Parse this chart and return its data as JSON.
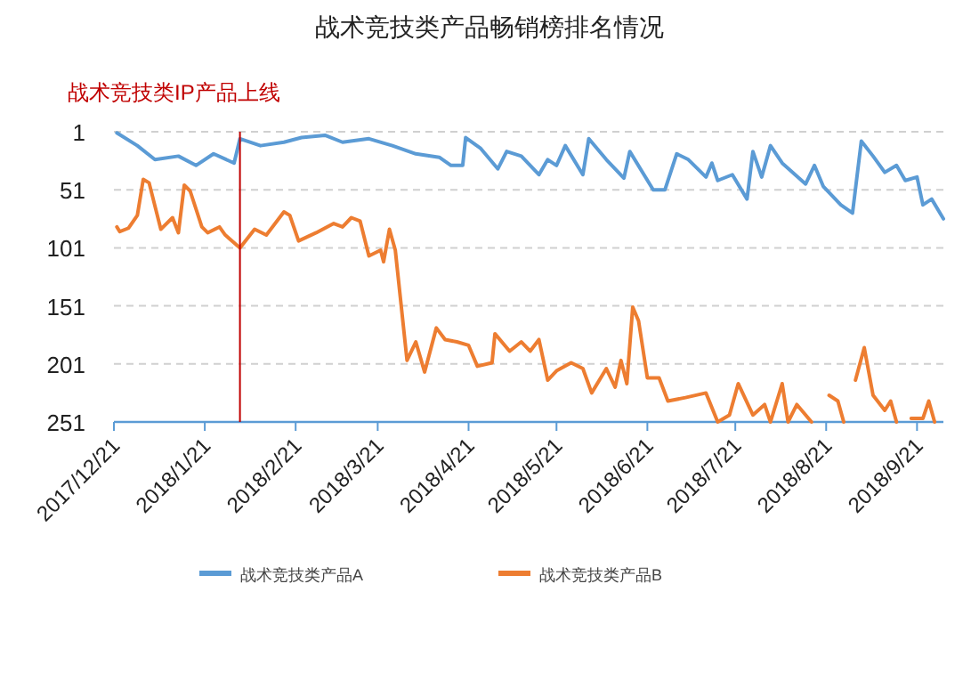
{
  "chart_data": {
    "type": "line",
    "title": "战术竞技类产品畅销榜排名情况",
    "xlim": [
      "2017-12-21",
      "2018-09-30"
    ],
    "xticks": [
      {
        "value": "2017-12-21",
        "label": "2017/12/21"
      },
      {
        "value": "2018-01-21",
        "label": "2018/1/21"
      },
      {
        "value": "2018-02-21",
        "label": "2018/2/21"
      },
      {
        "value": "2018-03-21",
        "label": "2018/3/21"
      },
      {
        "value": "2018-04-21",
        "label": "2018/4/21"
      },
      {
        "value": "2018-05-21",
        "label": "2018/5/21"
      },
      {
        "value": "2018-06-21",
        "label": "2018/6/21"
      },
      {
        "value": "2018-07-21",
        "label": "2018/7/21"
      },
      {
        "value": "2018-08-21",
        "label": "2018/8/21"
      },
      {
        "value": "2018-09-21",
        "label": "2018/9/21"
      }
    ],
    "ylim": [
      251,
      1
    ],
    "yticks": [
      1,
      51,
      101,
      151,
      201,
      251
    ],
    "grid": "y",
    "legend": "bottom",
    "ref_lines": [
      {
        "axis": "x",
        "value": "2018-02-02",
        "label": "战术竞技类IP产品上线",
        "color": "#c00000"
      }
    ],
    "series": [
      {
        "name": "战术竞技类产品A",
        "color": "#5b9bd5",
        "x": [
          "2017-12-22",
          "2017-12-29",
          "2018-01-04",
          "2018-01-12",
          "2018-01-18",
          "2018-01-24",
          "2018-01-31",
          "2018-02-02",
          "2018-02-09",
          "2018-02-17",
          "2018-02-23",
          "2018-03-03",
          "2018-03-09",
          "2018-03-18",
          "2018-03-26",
          "2018-04-03",
          "2018-04-11",
          "2018-04-15",
          "2018-04-19",
          "2018-04-20",
          "2018-04-25",
          "2018-05-01",
          "2018-05-04",
          "2018-05-09",
          "2018-05-15",
          "2018-05-18",
          "2018-05-21",
          "2018-05-24",
          "2018-05-30",
          "2018-06-01",
          "2018-06-07",
          "2018-06-13",
          "2018-06-15",
          "2018-06-23",
          "2018-06-27",
          "2018-07-01",
          "2018-07-05",
          "2018-07-11",
          "2018-07-13",
          "2018-07-15",
          "2018-07-20",
          "2018-07-25",
          "2018-07-27",
          "2018-07-30",
          "2018-08-02",
          "2018-08-06",
          "2018-08-14",
          "2018-08-17",
          "2018-08-20",
          "2018-08-26",
          "2018-08-30",
          "2018-09-02",
          "2018-09-06",
          "2018-09-10",
          "2018-09-14",
          "2018-09-17",
          "2018-09-21",
          "2018-09-23",
          "2018-09-26",
          "2018-09-30"
        ],
        "values": [
          2,
          13,
          25,
          22,
          30,
          20,
          28,
          7,
          13,
          10,
          6,
          4,
          10,
          7,
          13,
          20,
          23,
          30,
          30,
          6,
          15,
          33,
          18,
          22,
          38,
          25,
          30,
          13,
          38,
          7,
          25,
          41,
          18,
          51,
          51,
          20,
          25,
          40,
          28,
          43,
          38,
          59,
          18,
          40,
          13,
          28,
          46,
          30,
          48,
          64,
          71,
          9,
          22,
          36,
          30,
          43,
          40,
          64,
          59,
          76
        ]
      },
      {
        "name": "战术竞技类产品B",
        "color": "#ed7d31",
        "x": [
          "2017-12-22",
          "2017-12-23",
          "2017-12-26",
          "2017-12-29",
          "2017-12-31",
          "2018-01-02",
          "2018-01-06",
          "2018-01-10",
          "2018-01-12",
          "2018-01-14",
          "2018-01-16",
          "2018-01-20",
          "2018-01-22",
          "2018-01-26",
          "2018-01-28",
          "2018-02-02",
          "2018-02-07",
          "2018-02-11",
          "2018-02-17",
          "2018-02-19",
          "2018-02-22",
          "2018-02-28",
          "2018-03-06",
          "2018-03-09",
          "2018-03-12",
          "2018-03-15",
          "2018-03-18",
          "2018-03-22",
          "2018-03-23",
          "2018-03-25",
          "2018-03-27",
          "2018-03-31",
          "2018-04-03",
          "2018-04-06",
          "2018-04-10",
          "2018-04-13",
          "2018-04-17",
          "2018-04-21",
          "2018-04-24",
          "2018-04-29",
          "2018-04-30",
          "2018-05-05",
          "2018-05-09",
          "2018-05-12",
          "2018-05-15",
          "2018-05-18",
          "2018-05-21",
          "2018-05-26",
          "2018-05-30",
          "2018-06-02",
          "2018-06-07",
          "2018-06-10",
          "2018-06-12",
          "2018-06-14",
          "2018-06-16",
          "2018-06-18",
          "2018-06-21",
          "2018-06-25",
          "2018-06-28",
          "2018-07-04",
          "2018-07-11",
          "2018-07-15",
          "2018-07-19",
          "2018-07-22",
          "2018-07-27",
          "2018-07-31",
          "2018-08-02",
          "2018-08-06",
          "2018-08-08",
          "2018-08-11",
          "2018-08-16",
          "2018-08-18",
          "2018-08-22",
          "2018-08-25",
          "2018-08-27",
          "2018-08-29",
          "2018-08-31",
          "2018-09-03",
          "2018-09-06",
          "2018-09-10",
          "2018-09-12",
          "2018-09-14",
          "2018-09-16",
          "2018-09-19",
          "2018-09-23",
          "2018-09-25",
          "2018-09-27"
        ],
        "values": [
          83,
          87,
          84,
          73,
          42,
          45,
          85,
          75,
          88,
          47,
          52,
          83,
          88,
          83,
          90,
          101,
          85,
          90,
          70,
          73,
          95,
          88,
          80,
          83,
          75,
          78,
          108,
          103,
          113,
          85,
          103,
          198,
          182,
          208,
          170,
          180,
          182,
          185,
          203,
          200,
          175,
          190,
          182,
          190,
          180,
          215,
          207,
          200,
          205,
          226,
          205,
          221,
          198,
          218,
          152,
          164,
          213,
          213,
          233,
          230,
          226,
          251,
          245,
          218,
          245,
          236,
          251,
          218,
          251,
          236,
          251,
          null,
          228,
          233,
          251,
          null,
          215,
          187,
          228,
          241,
          233,
          251,
          null,
          248,
          248,
          233,
          251
        ]
      }
    ]
  }
}
